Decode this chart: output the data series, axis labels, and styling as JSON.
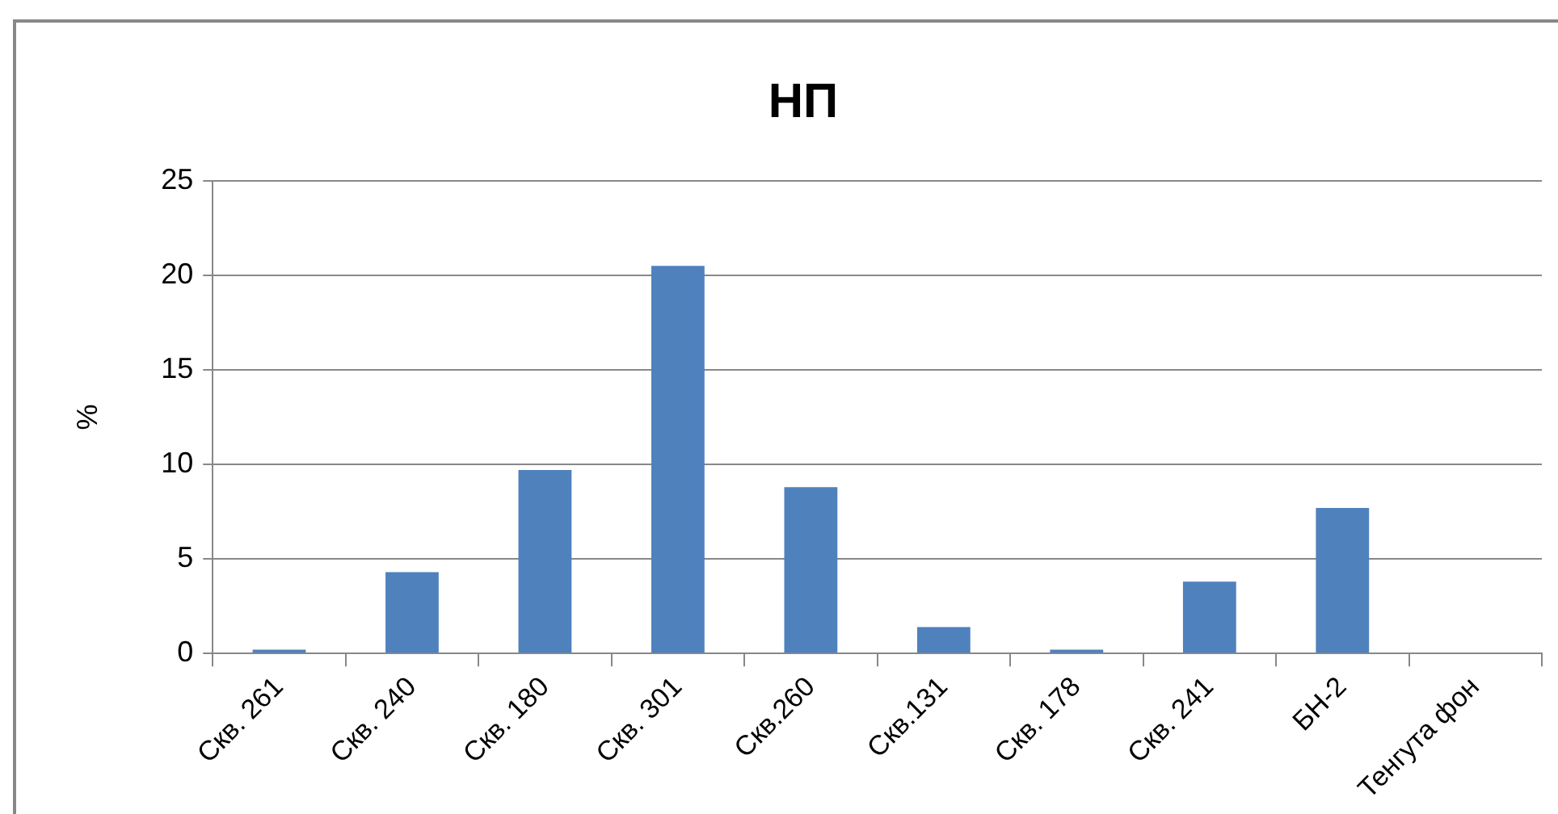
{
  "chart_data": {
    "type": "bar",
    "title": "НП",
    "ylabel": "%",
    "categories": [
      "Скв. 261",
      "Скв. 240",
      "Скв. 180",
      "Скв. 301",
      "Скв.260",
      "Скв.131",
      "Скв. 178",
      "Скв. 241",
      "БН-2",
      "Тенгута фон"
    ],
    "values": [
      0.2,
      4.3,
      9.7,
      20.5,
      8.8,
      1.4,
      0.2,
      3.8,
      7.7,
      0
    ],
    "color": "#4f81bd",
    "ylim": [
      0,
      25
    ],
    "yticks": [
      0,
      5,
      10,
      15,
      20,
      25
    ],
    "grid": "y",
    "legend": false
  }
}
